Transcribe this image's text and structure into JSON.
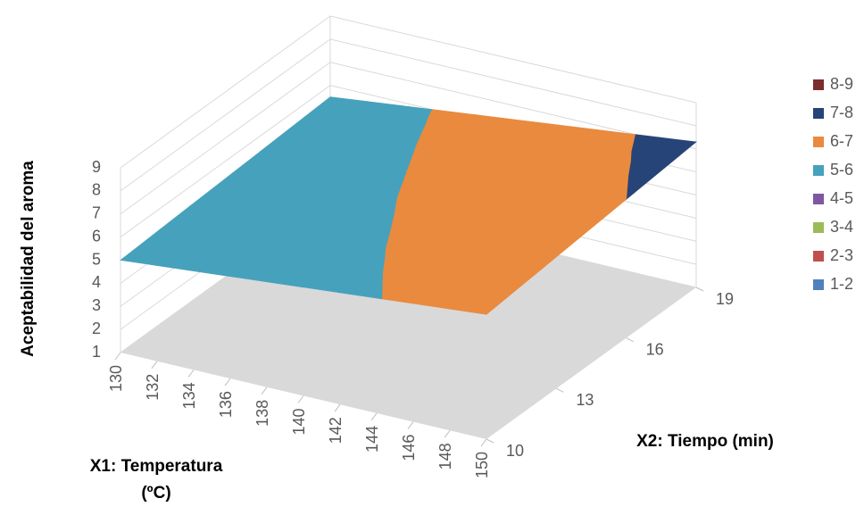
{
  "chart_data": {
    "type": "surface",
    "z_label": "Aceptabilidad del aroma",
    "x1_label": [
      "X1: Temperatura",
      "(ºC)"
    ],
    "x2_label": "X2: Tiempo (min)",
    "x1": [
      130,
      132,
      134,
      136,
      138,
      140,
      142,
      144,
      146,
      148,
      150
    ],
    "x2": [
      10,
      13,
      16,
      19
    ],
    "xlim": [
      130,
      150
    ],
    "x2lim": [
      10,
      19
    ],
    "zlim": [
      1,
      9
    ],
    "zticks": [
      1,
      2,
      3,
      4,
      5,
      6,
      7,
      8,
      9
    ],
    "values": [
      [
        5,
        5.14,
        5.28,
        5.42,
        5.56,
        5.7,
        5.84,
        5.98,
        6.12,
        6.26,
        6.4
      ],
      [
        5.17,
        5.32,
        5.47,
        5.63,
        5.78,
        5.93,
        6.09,
        6.24,
        6.39,
        6.55,
        6.7
      ],
      [
        5.33,
        5.5,
        5.67,
        5.83,
        6,
        6.17,
        6.33,
        6.5,
        6.67,
        6.83,
        7
      ],
      [
        5.5,
        5.68,
        5.86,
        6.04,
        6.22,
        6.4,
        6.58,
        6.76,
        6.94,
        7.12,
        7.3
      ]
    ],
    "bands": [
      {
        "label": "8-9",
        "min": 8,
        "max": 9,
        "color": "#7b2c2c"
      },
      {
        "label": "7-8",
        "min": 7,
        "max": 8,
        "color": "#264478"
      },
      {
        "label": "6-7",
        "min": 6,
        "max": 7,
        "color": "#e98a3e"
      },
      {
        "label": "5-6",
        "min": 5,
        "max": 6,
        "color": "#46a1bc"
      },
      {
        "label": "4-5",
        "min": 4,
        "max": 5,
        "color": "#7e57a3"
      },
      {
        "label": "3-4",
        "min": 3,
        "max": 4,
        "color": "#9bbb59"
      },
      {
        "label": "2-3",
        "min": 2,
        "max": 3,
        "color": "#c0504d"
      },
      {
        "label": "1-2",
        "min": 1,
        "max": 2,
        "color": "#4f81bd"
      }
    ],
    "grid": true
  }
}
